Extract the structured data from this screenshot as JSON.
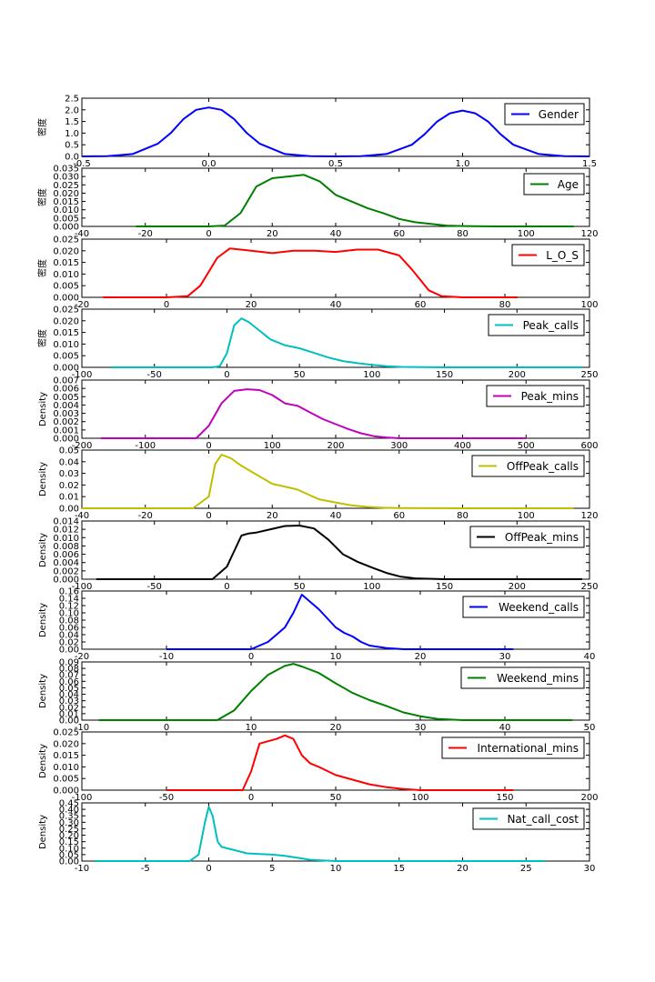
{
  "chart_data": [
    {
      "type": "line",
      "name": "Gender",
      "ylabel": "密度",
      "color": "#0000ff",
      "xlim": [
        -0.5,
        1.5
      ],
      "ylim": [
        0,
        2.5
      ],
      "xticks": [
        "-0.5",
        "0.0",
        "0.5",
        "1.0",
        "1.5"
      ],
      "yticks": [
        "0.0",
        "0.5",
        "1.0",
        "1.5",
        "2.0",
        "2.5"
      ],
      "x": [
        -0.5,
        -0.4,
        -0.3,
        -0.2,
        -0.15,
        -0.1,
        -0.05,
        0,
        0.05,
        0.1,
        0.15,
        0.2,
        0.3,
        0.4,
        0.5,
        0.6,
        0.7,
        0.8,
        0.85,
        0.9,
        0.95,
        1.0,
        1.05,
        1.1,
        1.15,
        1.2,
        1.3,
        1.4,
        1.5
      ],
      "y": [
        0.0,
        0.01,
        0.1,
        0.55,
        1.0,
        1.6,
        2.0,
        2.1,
        2.0,
        1.6,
        1.0,
        0.55,
        0.1,
        0.01,
        0.0,
        0.01,
        0.1,
        0.5,
        0.95,
        1.5,
        1.85,
        1.97,
        1.85,
        1.5,
        0.95,
        0.5,
        0.1,
        0.01,
        0.0
      ]
    },
    {
      "type": "line",
      "name": "Age",
      "ylabel": "密度",
      "color": "#008000",
      "xlim": [
        -40,
        120
      ],
      "ylim": [
        0,
        0.035
      ],
      "xticks": [
        "-40",
        "-20",
        "0",
        "20",
        "40",
        "60",
        "80",
        "100",
        "120"
      ],
      "yticks": [
        "0.000",
        "0.005",
        "0.010",
        "0.015",
        "0.020",
        "0.025",
        "0.030",
        "0.035"
      ],
      "x": [
        -23,
        0,
        5,
        10,
        15,
        20,
        25,
        30,
        35,
        40,
        45,
        50,
        55,
        60,
        65,
        70,
        75,
        80,
        90,
        100,
        115
      ],
      "y": [
        0.0,
        0.0,
        0.0005,
        0.008,
        0.024,
        0.029,
        0.03,
        0.031,
        0.027,
        0.019,
        0.015,
        0.011,
        0.008,
        0.0045,
        0.0025,
        0.0015,
        0.0005,
        0.0002,
        0.0,
        0.0,
        0.0
      ]
    },
    {
      "type": "line",
      "name": "L_O_S",
      "ylabel": "密度",
      "color": "#ff0000",
      "xlim": [
        -20,
        100
      ],
      "ylim": [
        0,
        0.025
      ],
      "xticks": [
        "-20",
        "0",
        "20",
        "40",
        "60",
        "80",
        "100"
      ],
      "yticks": [
        "0.000",
        "0.005",
        "0.010",
        "0.015",
        "0.020",
        "0.025"
      ],
      "x": [
        -15,
        0,
        5,
        8,
        12,
        15,
        20,
        25,
        30,
        35,
        40,
        45,
        50,
        55,
        58,
        62,
        65,
        70,
        83
      ],
      "y": [
        0.0,
        0.0,
        0.0005,
        0.005,
        0.017,
        0.021,
        0.02,
        0.019,
        0.02,
        0.02,
        0.0195,
        0.0205,
        0.0205,
        0.018,
        0.012,
        0.003,
        0.0005,
        0.0,
        0.0
      ]
    },
    {
      "type": "line",
      "name": "Peak_calls",
      "ylabel": "密度",
      "color": "#00bfbf",
      "xlim": [
        -100,
        250
      ],
      "ylim": [
        0,
        0.025
      ],
      "xticks": [
        "-100",
        "-50",
        "0",
        "50",
        "100",
        "150",
        "200",
        "250"
      ],
      "yticks": [
        "0.000",
        "0.005",
        "0.010",
        "0.015",
        "0.020",
        "0.025"
      ],
      "x": [
        -80,
        -10,
        -5,
        0,
        5,
        10,
        15,
        20,
        30,
        40,
        50,
        60,
        70,
        80,
        90,
        100,
        110,
        120,
        150,
        245
      ],
      "y": [
        0.0,
        0.0,
        0.0005,
        0.006,
        0.018,
        0.021,
        0.0195,
        0.017,
        0.012,
        0.0095,
        0.0082,
        0.0062,
        0.0042,
        0.0027,
        0.0018,
        0.0011,
        0.0005,
        0.0002,
        0.0,
        0.0
      ]
    },
    {
      "type": "line",
      "name": "Peak_mins",
      "ylabel": "Density",
      "color": "#bf00bf",
      "xlim": [
        -200,
        600
      ],
      "ylim": [
        0,
        0.007
      ],
      "xticks": [
        "-200",
        "-100",
        "0",
        "100",
        "200",
        "300",
        "400",
        "500",
        "600"
      ],
      "yticks": [
        "0.000",
        "0.001",
        "0.002",
        "0.003",
        "0.004",
        "0.005",
        "0.006",
        "0.007"
      ],
      "x": [
        -170,
        -20,
        0,
        20,
        40,
        60,
        80,
        100,
        120,
        140,
        160,
        180,
        200,
        220,
        240,
        260,
        280,
        300,
        350,
        500
      ],
      "y": [
        0.0,
        0.0,
        0.0015,
        0.0042,
        0.0057,
        0.0059,
        0.0058,
        0.0052,
        0.0042,
        0.0039,
        0.0031,
        0.0023,
        0.0017,
        0.0011,
        0.0006,
        0.00025,
        0.0001,
        0.0,
        0.0,
        0.0
      ]
    },
    {
      "type": "line",
      "name": "OffPeak_calls",
      "ylabel": "Density",
      "color": "#bfbf00",
      "xlim": [
        -40,
        120
      ],
      "ylim": [
        0,
        0.05
      ],
      "xticks": [
        "-40",
        "-20",
        "0",
        "20",
        "40",
        "60",
        "80",
        "100",
        "120"
      ],
      "yticks": [
        "0.00",
        "0.01",
        "0.02",
        "0.03",
        "0.04",
        "0.05"
      ],
      "x": [
        -40,
        -5,
        0,
        2,
        4,
        7,
        10,
        15,
        20,
        25,
        28,
        32,
        35,
        40,
        45,
        50,
        55,
        60,
        80,
        115
      ],
      "y": [
        0.0,
        0.0,
        0.01,
        0.038,
        0.046,
        0.043,
        0.037,
        0.029,
        0.021,
        0.018,
        0.016,
        0.011,
        0.0075,
        0.005,
        0.0025,
        0.0012,
        0.0005,
        0.0002,
        0.0,
        0.0
      ]
    },
    {
      "type": "line",
      "name": "OffPeak_mins",
      "ylabel": "Density",
      "color": "#000000",
      "xlim": [
        -100,
        250
      ],
      "ylim": [
        0,
        0.014
      ],
      "xticks": [
        "-100",
        "-50",
        "0",
        "50",
        "100",
        "150",
        "200",
        "250"
      ],
      "yticks": [
        "0.000",
        "0.002",
        "0.004",
        "0.006",
        "0.008",
        "0.010",
        "0.012",
        "0.014"
      ],
      "x": [
        -90,
        -10,
        0,
        10,
        15,
        20,
        30,
        40,
        50,
        60,
        70,
        80,
        90,
        100,
        110,
        120,
        130,
        150,
        245
      ],
      "y": [
        0.0,
        0.0,
        0.003,
        0.0105,
        0.011,
        0.0112,
        0.012,
        0.0128,
        0.0129,
        0.0122,
        0.0095,
        0.006,
        0.0042,
        0.0028,
        0.0015,
        0.0006,
        0.0002,
        0.0,
        0.0
      ]
    },
    {
      "type": "line",
      "name": "Weekend_calls",
      "ylabel": "Density",
      "color": "#0000ff",
      "xlim": [
        -20,
        40
      ],
      "ylim": [
        0,
        0.16
      ],
      "xticks": [
        "-20",
        "-10",
        "0",
        "10",
        "20",
        "30",
        "40"
      ],
      "yticks": [
        "0.00",
        "0.02",
        "0.04",
        "0.06",
        "0.08",
        "0.10",
        "0.12",
        "0.14",
        "0.16"
      ],
      "x": [
        -10,
        0,
        2,
        4,
        5,
        6,
        7,
        8,
        9,
        10,
        11,
        12,
        13,
        14,
        16,
        18,
        31
      ],
      "y": [
        0.0,
        0.0,
        0.02,
        0.06,
        0.1,
        0.15,
        0.13,
        0.11,
        0.085,
        0.06,
        0.045,
        0.035,
        0.02,
        0.01,
        0.003,
        0.0,
        0.0
      ]
    },
    {
      "type": "line",
      "name": "Weekend_mins",
      "ylabel": "Density",
      "color": "#008000",
      "xlim": [
        -10,
        50
      ],
      "ylim": [
        0,
        0.09
      ],
      "xticks": [
        "-10",
        "0",
        "10",
        "20",
        "30",
        "40",
        "50"
      ],
      "yticks": [
        "0.00",
        "0.01",
        "0.02",
        "0.03",
        "0.04",
        "0.05",
        "0.06",
        "0.07",
        "0.08",
        "0.09"
      ],
      "x": [
        -8,
        6,
        8,
        10,
        12,
        14,
        15,
        16,
        18,
        20,
        22,
        24,
        26,
        28,
        30,
        32,
        35,
        48
      ],
      "y": [
        0.0,
        0.0,
        0.015,
        0.045,
        0.07,
        0.084,
        0.087,
        0.083,
        0.073,
        0.057,
        0.042,
        0.031,
        0.022,
        0.012,
        0.006,
        0.002,
        0.0,
        0.0
      ]
    },
    {
      "type": "line",
      "name": "International_mins",
      "ylabel": "Density",
      "color": "#ff0000",
      "xlim": [
        -100,
        200
      ],
      "ylim": [
        0,
        0.025
      ],
      "xticks": [
        "-100",
        "-50",
        "0",
        "50",
        "100",
        "150",
        "200"
      ],
      "yticks": [
        "0.000",
        "0.005",
        "0.010",
        "0.015",
        "0.020",
        "0.025"
      ],
      "x": [
        -50,
        -5,
        0,
        5,
        10,
        15,
        20,
        25,
        30,
        35,
        40,
        50,
        60,
        70,
        80,
        90,
        100,
        155
      ],
      "y": [
        0.0,
        0.0,
        0.008,
        0.02,
        0.021,
        0.022,
        0.0235,
        0.022,
        0.015,
        0.0115,
        0.01,
        0.0065,
        0.0045,
        0.0025,
        0.0013,
        0.0005,
        0.0,
        0.0
      ]
    },
    {
      "type": "line",
      "name": "Nat_call_cost",
      "ylabel": "Density",
      "color": "#00bfbf",
      "xlim": [
        -10,
        30
      ],
      "ylim": [
        0,
        0.45
      ],
      "xticks": [
        "-10",
        "-5",
        "0",
        "5",
        "10",
        "15",
        "20",
        "25",
        "30"
      ],
      "yticks": [
        "0.00",
        "0.05",
        "0.10",
        "0.15",
        "0.20",
        "0.25",
        "0.30",
        "0.35",
        "0.40",
        "0.45"
      ],
      "x": [
        -9,
        -1.5,
        -0.8,
        -0.3,
        0,
        0.3,
        0.7,
        1,
        2,
        3,
        4,
        5,
        6,
        7,
        8,
        10,
        26.5
      ],
      "y": [
        0.0,
        0.0,
        0.05,
        0.3,
        0.42,
        0.35,
        0.15,
        0.11,
        0.085,
        0.06,
        0.055,
        0.05,
        0.04,
        0.025,
        0.01,
        0.0,
        0.0
      ]
    }
  ]
}
